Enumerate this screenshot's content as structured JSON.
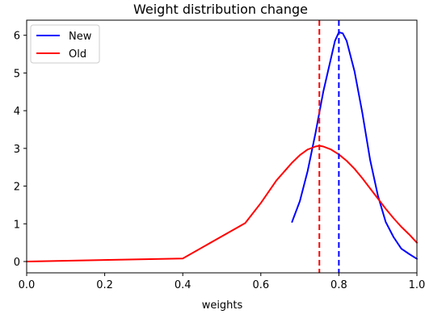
{
  "chart_data": {
    "type": "line",
    "title": "Weight distribution change",
    "xlabel": "weights",
    "ylabel": "",
    "xlim": [
      0.0,
      1.0
    ],
    "ylim": [
      -0.3,
      6.4
    ],
    "xticks": [
      0.0,
      0.2,
      0.4,
      0.6,
      0.8,
      1.0
    ],
    "xtick_labels": [
      "0.0",
      "0.2",
      "0.4",
      "0.6",
      "0.8",
      "1.0"
    ],
    "yticks": [
      0,
      1,
      2,
      3,
      4,
      5,
      6
    ],
    "ytick_labels": [
      "0",
      "1",
      "2",
      "3",
      "4",
      "5",
      "6"
    ],
    "grid": false,
    "legend_position": "top-left",
    "series": [
      {
        "name": "New",
        "color": "#0000ff",
        "x": [
          0.68,
          0.7,
          0.72,
          0.74,
          0.76,
          0.78,
          0.79,
          0.8,
          0.81,
          0.82,
          0.84,
          0.86,
          0.88,
          0.9,
          0.92,
          0.94,
          0.96,
          0.98,
          1.0
        ],
        "y": [
          1.05,
          1.6,
          2.4,
          3.4,
          4.5,
          5.4,
          5.85,
          6.08,
          6.05,
          5.85,
          5.05,
          3.95,
          2.7,
          1.75,
          1.05,
          0.65,
          0.34,
          0.2,
          0.07
        ]
      },
      {
        "name": "Old",
        "color": "#ff0000",
        "x": [
          0.0,
          0.4,
          0.56,
          0.6,
          0.64,
          0.68,
          0.7,
          0.72,
          0.74,
          0.75,
          0.76,
          0.78,
          0.8,
          0.82,
          0.84,
          0.86,
          0.88,
          0.9,
          0.92,
          0.94,
          0.96,
          0.98,
          1.0
        ],
        "y": [
          0.0,
          0.08,
          1.02,
          1.55,
          2.15,
          2.62,
          2.82,
          2.97,
          3.05,
          3.07,
          3.05,
          2.97,
          2.84,
          2.67,
          2.46,
          2.21,
          1.94,
          1.67,
          1.4,
          1.15,
          0.92,
          0.72,
          0.5
        ]
      }
    ],
    "vlines": [
      {
        "series": "Old",
        "x": 0.75,
        "color": "#ff0000",
        "style": "dashed"
      },
      {
        "series": "New",
        "x": 0.8,
        "color": "#0000ff",
        "style": "dashed"
      }
    ]
  }
}
